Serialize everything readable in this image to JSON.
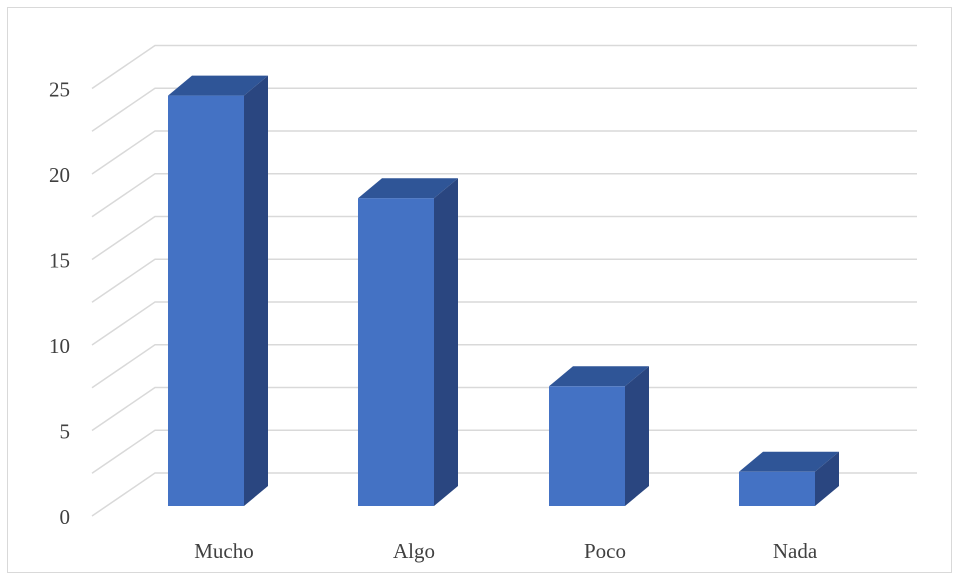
{
  "chart_data": {
    "type": "bar",
    "style": "3d-column",
    "categories": [
      "Mucho",
      "Algo",
      "Poco",
      "Nada"
    ],
    "values": [
      24,
      18,
      7,
      2
    ],
    "title": "",
    "xlabel": "",
    "ylabel": "",
    "ylim": [
      0,
      25
    ],
    "yticks": [
      0,
      5,
      10,
      15,
      20,
      25
    ],
    "grid": true,
    "legend": "none",
    "colors": {
      "front": "#4472c4",
      "top": "#2f5597",
      "side": "#2a4680",
      "grid": "#d9d9d9",
      "text": "#404040"
    }
  }
}
